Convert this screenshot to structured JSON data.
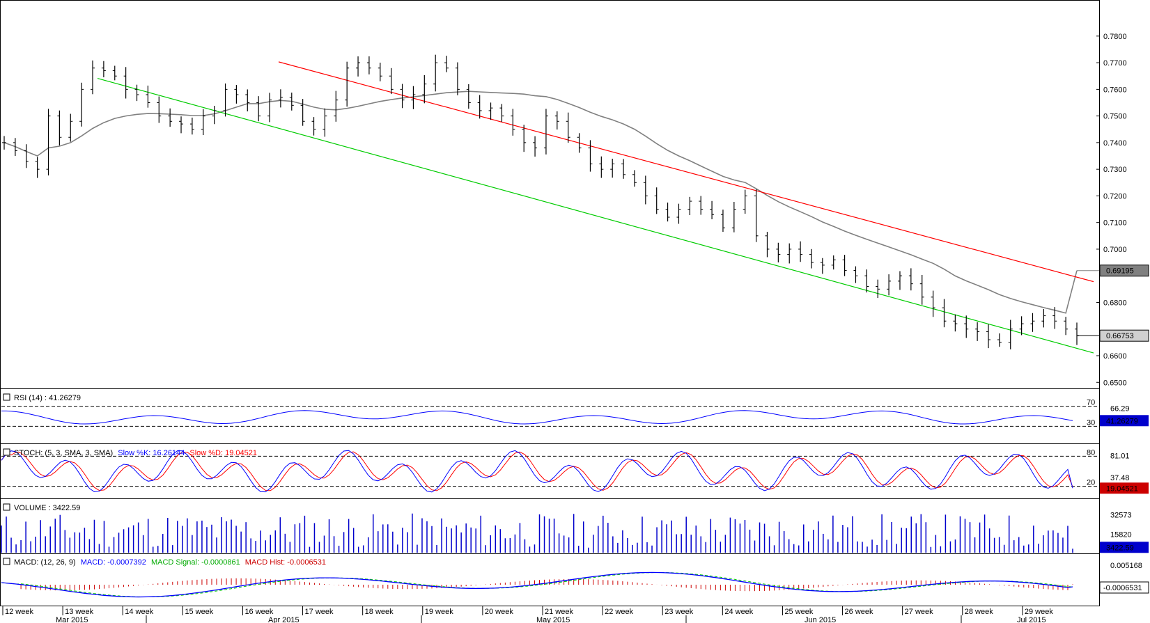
{
  "chart_data": {
    "type": "ohlc",
    "price_panel": {
      "y_ticks": [
        "0.7800",
        "0.7700",
        "0.7600",
        "0.7500",
        "0.7400",
        "0.7300",
        "0.7200",
        "0.7100",
        "0.7000",
        "0.6800",
        "0.6600",
        "0.6500"
      ],
      "y_range": [
        0.6485,
        0.7925
      ],
      "last_price_label": "0.66753",
      "last_price": 0.66753,
      "ma_label": "0.69195",
      "ma_value": 0.69195,
      "ma_color": "#808080",
      "channel_upper_color": "#ff0000",
      "channel_lower_color": "#00cc00",
      "channel_upper": {
        "start_bar": 0,
        "start": 0.7981,
        "end_bar": 107,
        "end": 0.6783
      },
      "channel_lower": {
        "start_bar": 0,
        "start": 0.7738,
        "end_bar": 107,
        "end": 0.6513
      },
      "series_closes_approx": [
        0.74,
        0.737,
        0.733,
        0.73,
        0.75,
        0.742,
        0.748,
        0.76,
        0.768,
        0.767,
        0.765,
        0.76,
        0.758,
        0.755,
        0.75,
        0.748,
        0.747,
        0.745,
        0.75,
        0.752,
        0.76,
        0.758,
        0.755,
        0.75,
        0.756,
        0.757,
        0.754,
        0.748,
        0.745,
        0.75,
        0.756,
        0.768,
        0.77,
        0.768,
        0.765,
        0.76,
        0.756,
        0.758,
        0.762,
        0.77,
        0.768,
        0.76,
        0.755,
        0.752,
        0.753,
        0.75,
        0.745,
        0.74,
        0.738,
        0.75,
        0.748,
        0.742,
        0.738,
        0.732,
        0.73,
        0.732,
        0.728,
        0.725,
        0.72,
        0.715,
        0.712,
        0.715,
        0.718,
        0.715,
        0.713,
        0.708,
        0.715,
        0.72,
        0.705,
        0.7,
        0.698,
        0.7,
        0.698,
        0.695,
        0.694,
        0.696,
        0.692,
        0.69,
        0.686,
        0.685,
        0.688,
        0.69,
        0.687,
        0.682,
        0.678,
        0.673,
        0.672,
        0.67,
        0.669,
        0.666,
        0.665,
        0.67,
        0.672,
        0.673,
        0.675,
        0.673,
        0.67,
        0.6675
      ]
    },
    "rsi_panel": {
      "title": "RSI (14) : 41.26279",
      "level_labels": [
        "70",
        "30"
      ],
      "right_value_label": "66.29",
      "current_label": "41.26279",
      "line_color": "#0000ff"
    },
    "stoch_panel": {
      "title_prefix": "STOCH: (5, 3, SMA, 3, SMA)",
      "k_label": "Slow %K: 16.26144",
      "d_label": "Slow %D: 19.04521",
      "level_labels": [
        "80",
        "20"
      ],
      "right_value_label": "81.01",
      "mid_value_label": "37.48",
      "current_label": "19.04521",
      "k_color": "#0000ff",
      "d_color": "#ff0000"
    },
    "volume_panel": {
      "title": "VOLUME : 3422.59",
      "y_labels": [
        "32573",
        "15820"
      ],
      "current_label": "3422.59",
      "bar_color": "#0000cc"
    },
    "macd_panel": {
      "title_prefix": "MACD: (12, 26, 9)",
      "macd_label": "MACD: -0.0007392",
      "signal_label": "MACD Signal: -0.0000861",
      "hist_label": "MACD Hist: -0.0006531",
      "y_label": "0.005168",
      "current_label": "-0.0006531",
      "macd_color": "#0000ff",
      "signal_color": "#00cc00",
      "hist_color": "#cc0000"
    },
    "x_axis": {
      "week_labels": [
        "12 week",
        "13 week",
        "14 week",
        "15 week",
        "16 week",
        "17 week",
        "18 week",
        "19 week",
        "20 week",
        "21 week",
        "22 week",
        "23 week",
        "24 week",
        "25 week",
        "26 week",
        "27 week",
        "28 week",
        "29 week"
      ],
      "month_labels": [
        "Mar 2015",
        "Apr 2015",
        "May 2015",
        "Jun 2015",
        "Jul 2015"
      ]
    }
  }
}
